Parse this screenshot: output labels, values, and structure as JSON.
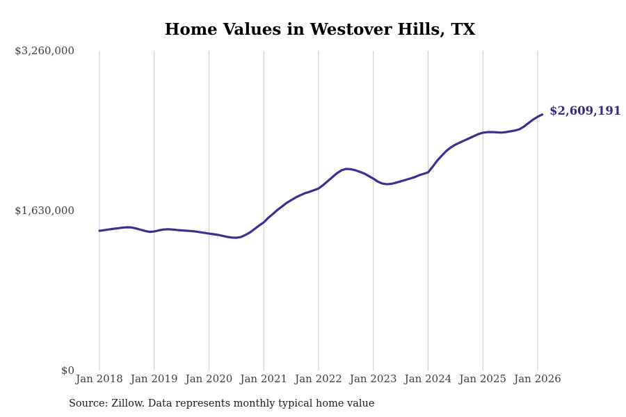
{
  "title": "Home Values in Westover Hills, TX",
  "annotation": {
    "label": "$2,609,191"
  },
  "source": "Source: Zillow. Data represents monthly typical home value",
  "colors": {
    "line": "#37318f",
    "annotation": "#2e2b82",
    "grid": "#c9c9c9",
    "tick_text": "#3d3d3d",
    "title_text": "#000000"
  },
  "chart_data": {
    "type": "line",
    "title": "Home Values in Westover Hills, TX",
    "xlabel": "",
    "ylabel": "",
    "x_start": "Jan 2018",
    "x_end": "Feb 2026",
    "frequency": "monthly",
    "x_tick_labels": [
      "Jan 2018",
      "Jan 2019",
      "Jan 2020",
      "Jan 2021",
      "Jan 2022",
      "Jan 2023",
      "Jan 2024",
      "Jan 2025",
      "Jan 2026"
    ],
    "y_tick_labels": [
      "$0",
      "$1,630,000",
      "$3,260,000"
    ],
    "ylim": [
      0,
      3260000
    ],
    "grid": "vertical-only",
    "legend": "none",
    "last_value": 2609191,
    "last_value_label": "$2,609,191",
    "series": [
      {
        "name": "Monthly typical home value",
        "values": [
          1424000,
          1430000,
          1437000,
          1444000,
          1450000,
          1456000,
          1460000,
          1458000,
          1448000,
          1435000,
          1422000,
          1413000,
          1417000,
          1428000,
          1437000,
          1440000,
          1437000,
          1432000,
          1428000,
          1425000,
          1422000,
          1417000,
          1410000,
          1403000,
          1396000,
          1389000,
          1382000,
          1372000,
          1362000,
          1355000,
          1353000,
          1360000,
          1382000,
          1408000,
          1443000,
          1478000,
          1510000,
          1557000,
          1596000,
          1637000,
          1672000,
          1708000,
          1736000,
          1764000,
          1786000,
          1807000,
          1821000,
          1838000,
          1855000,
          1890000,
          1930000,
          1970000,
          2010000,
          2040000,
          2055000,
          2052000,
          2042000,
          2026000,
          2008000,
          1982000,
          1956000,
          1925000,
          1905000,
          1899000,
          1903000,
          1915000,
          1928000,
          1942000,
          1956000,
          1970000,
          1990000,
          2005000,
          2020000,
          2077000,
          2140000,
          2191000,
          2239000,
          2275000,
          2303000,
          2325000,
          2346000,
          2367000,
          2389000,
          2410000,
          2424000,
          2430000,
          2431000,
          2428000,
          2425000,
          2430000,
          2438000,
          2446000,
          2459000,
          2487000,
          2523000,
          2558000,
          2587000,
          2609191
        ]
      }
    ]
  }
}
